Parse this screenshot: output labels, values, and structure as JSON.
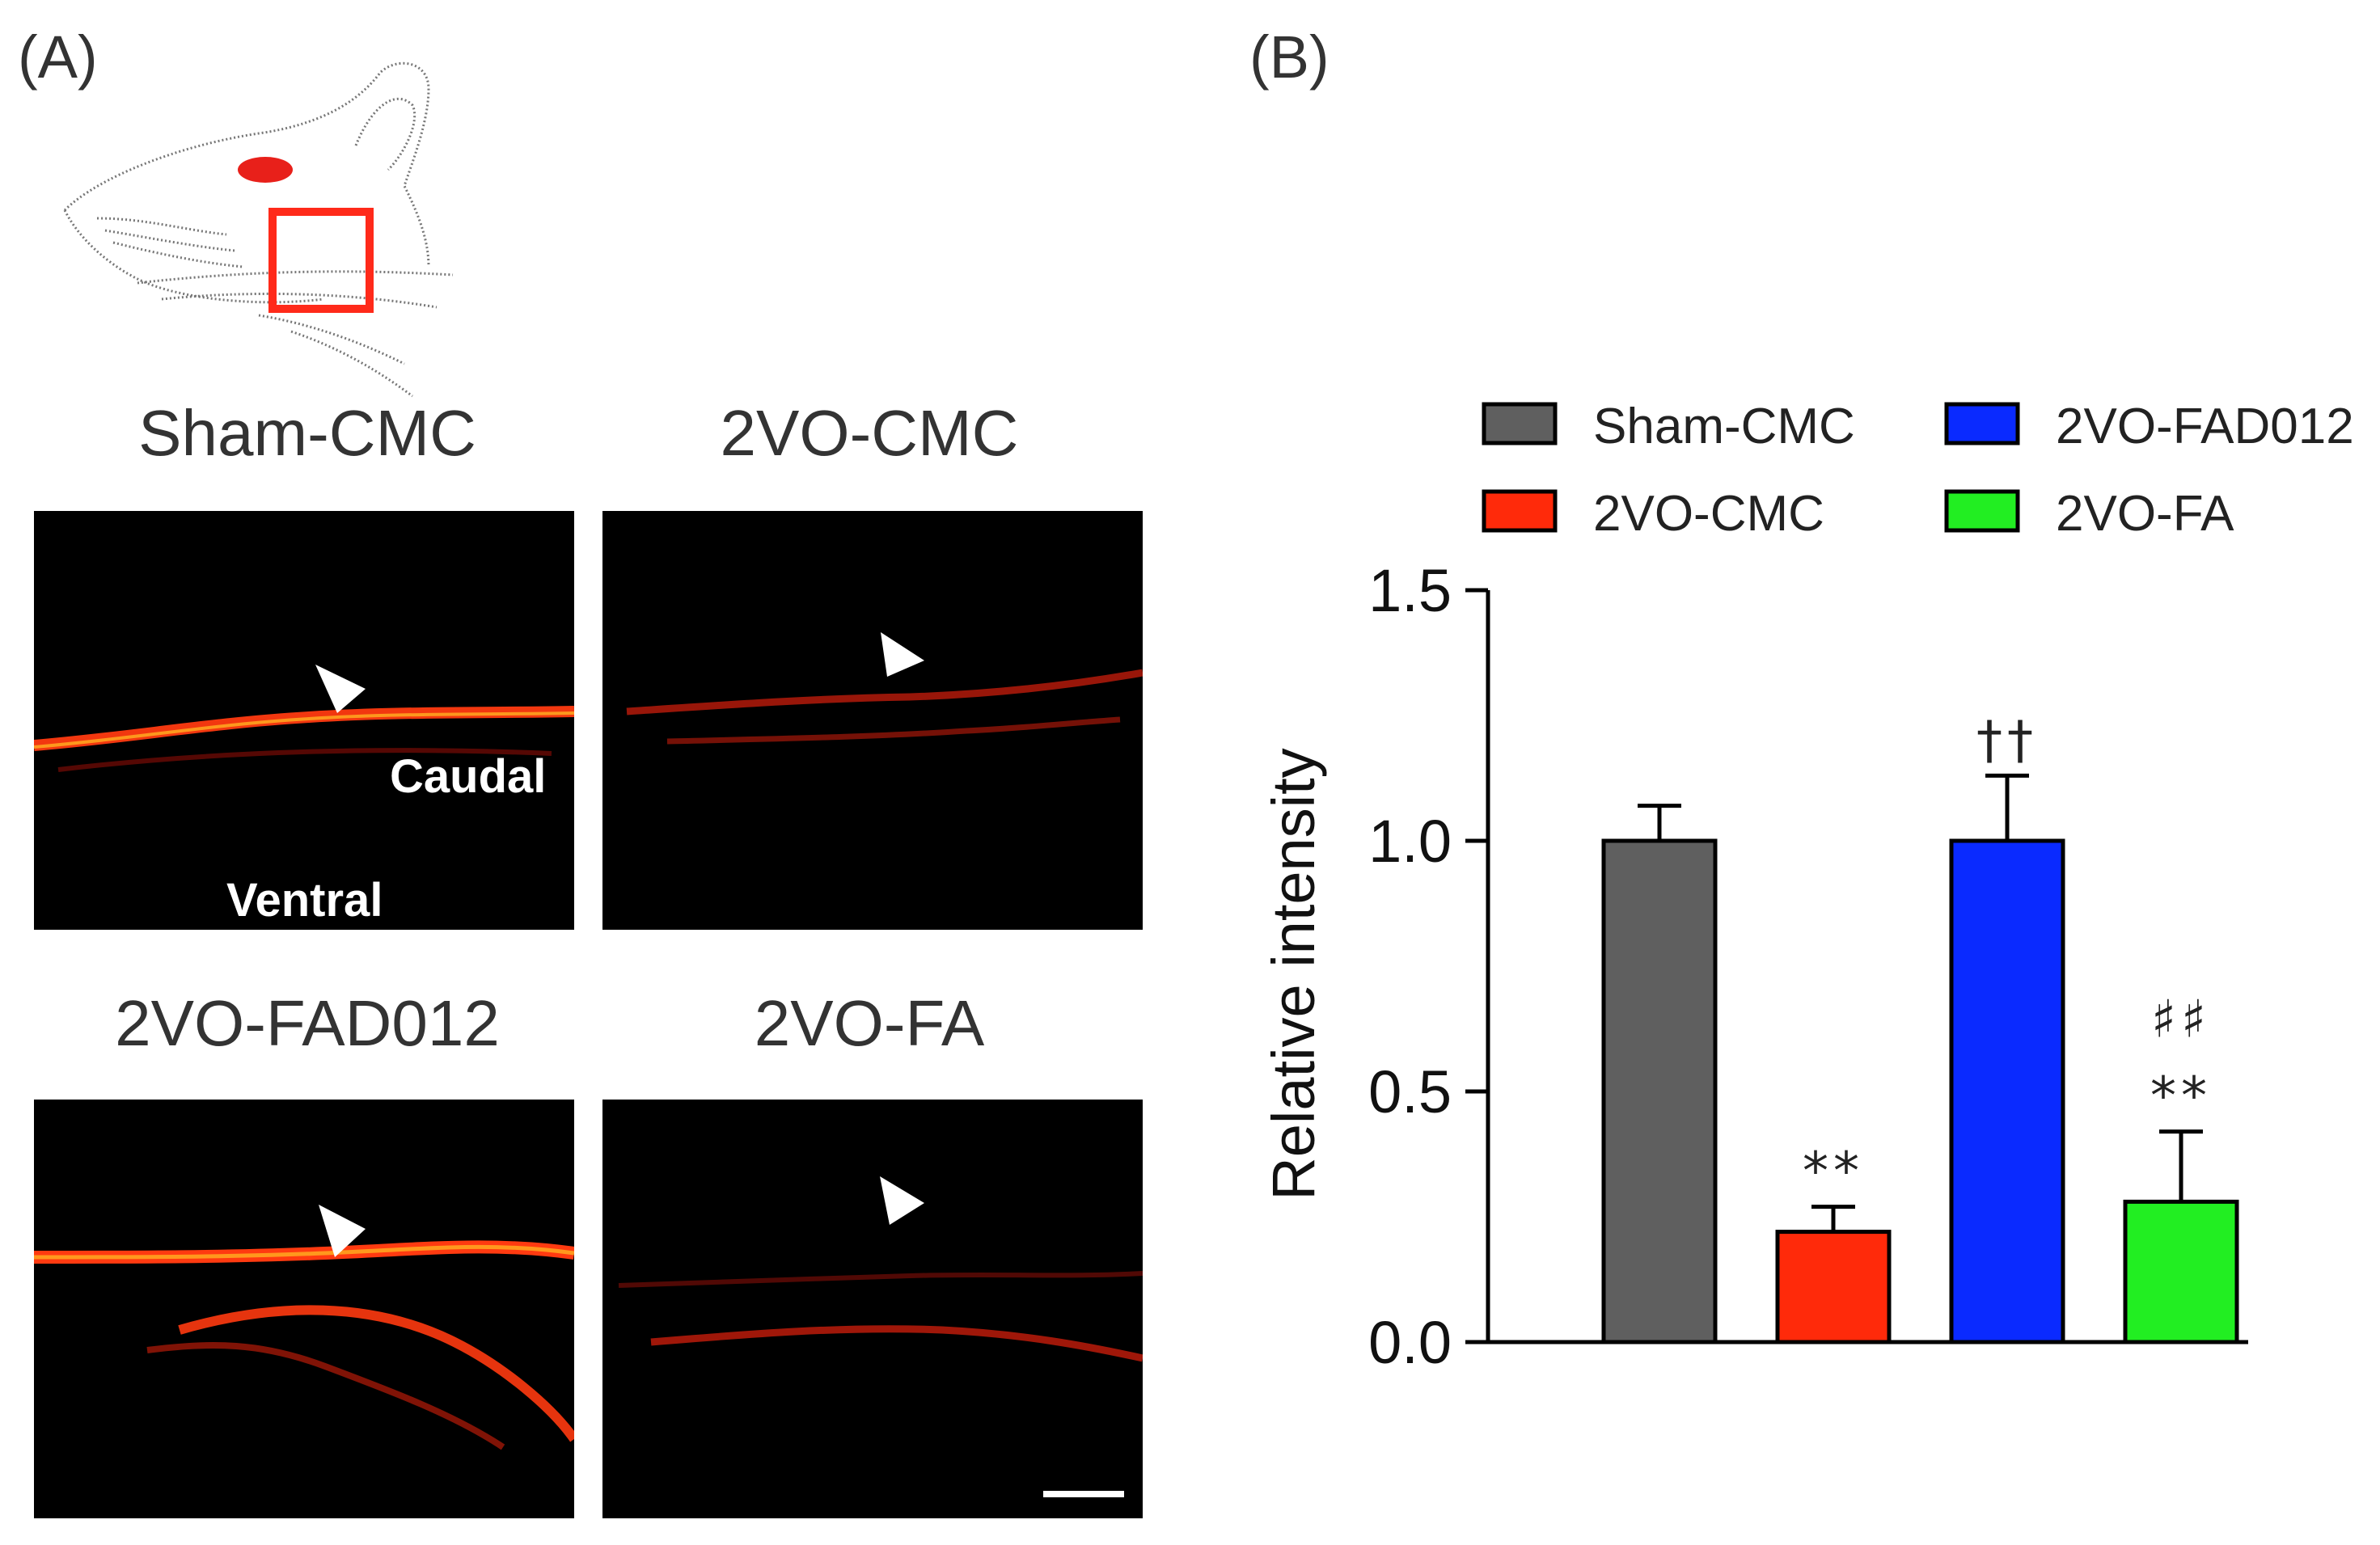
{
  "panel_labels": {
    "a": "(A)",
    "b": "(B)"
  },
  "images": {
    "sham_cmc": {
      "title": "Sham-CMC",
      "label_caudal": "Caudal",
      "label_ventral": "Ventral"
    },
    "vo_cmc": {
      "title": "2VO-CMC"
    },
    "vo_fad012": {
      "title": "2VO-FAD012"
    },
    "vo_fa": {
      "title": "2VO-FA"
    }
  },
  "colors": {
    "sham": "#5f5f5f",
    "vo_cmc": "#ff2a0a",
    "vo_fad012": "#0a2aff",
    "vo_fa": "#22ee22",
    "box": "#ff2a1a"
  },
  "chart_data": {
    "type": "bar",
    "title": "",
    "xlabel": "",
    "ylabel": "Relative intensity",
    "ylim": [
      0,
      1.5
    ],
    "yticks": [
      "0.0",
      "0.5",
      "1.0",
      "1.5"
    ],
    "ytick_values": [
      0,
      0.5,
      1.0,
      1.5
    ],
    "categories": [
      "Sham-CMC",
      "2VO-CMC",
      "2VO-FAD012",
      "2VO-FA"
    ],
    "values": [
      1.0,
      0.22,
      1.0,
      0.28
    ],
    "errors": [
      0.07,
      0.05,
      0.13,
      0.14
    ],
    "annotations": [
      {
        "index": 1,
        "lines": [
          "**"
        ]
      },
      {
        "index": 2,
        "lines": [
          "††"
        ]
      },
      {
        "index": 3,
        "lines": [
          "♯♯",
          "**"
        ]
      }
    ],
    "legend": {
      "position": "top",
      "entries": [
        "Sham-CMC",
        "2VO-FAD012",
        "2VO-CMC",
        "2VO-FA"
      ],
      "entry_categories": [
        0,
        2,
        1,
        3
      ]
    }
  }
}
